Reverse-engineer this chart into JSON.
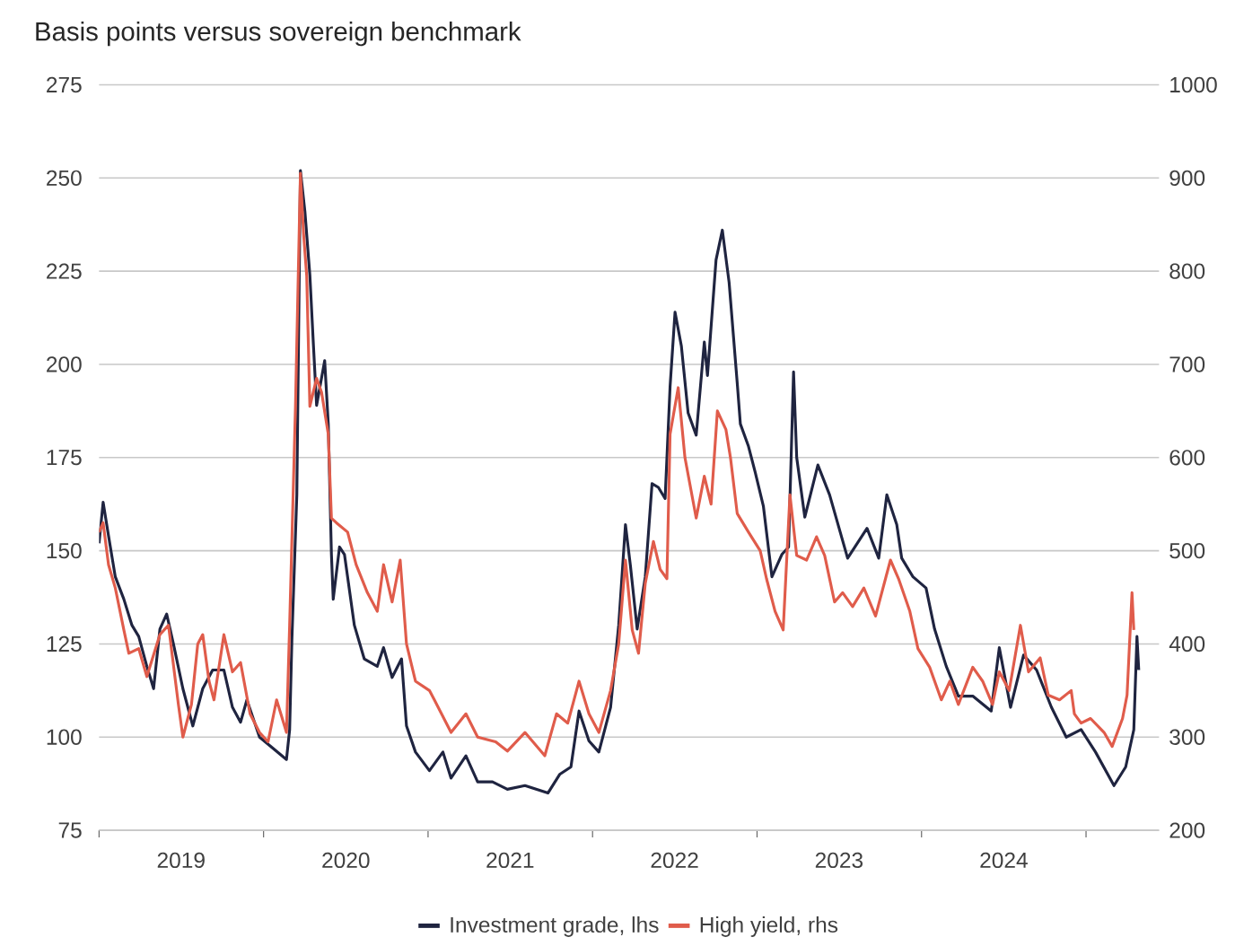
{
  "chart_data": {
    "type": "line",
    "title": "Basis points versus sovereign benchmark",
    "xlim": [
      "2019-01-01",
      "2025-06-12"
    ],
    "xticks": [
      {
        "value": "2019-01-01",
        "label": null
      },
      {
        "value": "2020-01-01",
        "label": null
      },
      {
        "value": "2021-01-01",
        "label": null
      },
      {
        "value": "2022-01-01",
        "label": null
      },
      {
        "value": "2023-01-01",
        "label": null
      },
      {
        "value": "2024-01-01",
        "label": null
      },
      {
        "value": "2025-01-01",
        "label": null
      },
      {
        "value": "2019-07-02",
        "label": "2019"
      },
      {
        "value": "2020-07-02",
        "label": "2020"
      },
      {
        "value": "2021-07-02",
        "label": "2021"
      },
      {
        "value": "2022-07-02",
        "label": "2022"
      },
      {
        "value": "2023-07-02",
        "label": "2023"
      },
      {
        "value": "2024-07-02",
        "label": "2024"
      }
    ],
    "ylim": [
      75,
      275
    ],
    "yticks": [
      75,
      100,
      125,
      150,
      175,
      200,
      225,
      250,
      275
    ],
    "y2lim": [
      200,
      1000
    ],
    "y2ticks": [
      200,
      300,
      400,
      500,
      600,
      700,
      800,
      900,
      1000
    ],
    "grid": "y",
    "legend": "bottom",
    "line_style": "solid",
    "series": [
      {
        "name": "Investment grade, lhs",
        "color": "#1f2440",
        "axis": "y",
        "x": [
          "2019-01-01",
          "2019-01-10",
          "2019-01-22",
          "2019-02-06",
          "2019-02-25",
          "2019-03-15",
          "2019-03-30",
          "2019-04-17",
          "2019-05-02",
          "2019-05-16",
          "2019-05-31",
          "2019-06-15",
          "2019-07-06",
          "2019-07-28",
          "2019-08-19",
          "2019-09-10",
          "2019-10-05",
          "2019-10-24",
          "2019-11-11",
          "2019-11-25",
          "2019-12-23",
          "2020-01-22",
          "2020-02-21",
          "2020-02-28",
          "2020-03-04",
          "2020-03-15",
          "2020-03-23",
          "2020-04-02",
          "2020-04-13",
          "2020-04-21",
          "2020-04-28",
          "2020-05-16",
          "2020-05-24",
          "2020-05-31",
          "2020-06-04",
          "2020-06-18",
          "2020-06-29",
          "2020-07-21",
          "2020-08-12",
          "2020-09-10",
          "2020-09-24",
          "2020-10-13",
          "2020-11-03",
          "2020-11-14",
          "2020-12-04",
          "2021-01-04",
          "2021-02-03",
          "2021-02-21",
          "2021-03-26",
          "2021-04-21",
          "2021-05-24",
          "2021-06-26",
          "2021-08-04",
          "2021-09-24",
          "2021-10-20",
          "2021-11-14",
          "2021-12-02",
          "2021-12-24",
          "2022-01-15",
          "2022-02-10",
          "2022-02-28",
          "2022-03-15",
          "2022-03-26",
          "2022-04-10",
          "2022-04-28",
          "2022-05-13",
          "2022-05-27",
          "2022-06-11",
          "2022-06-22",
          "2022-07-03",
          "2022-07-17",
          "2022-08-01",
          "2022-08-19",
          "2022-09-06",
          "2022-09-13",
          "2022-10-02",
          "2022-10-16",
          "2022-10-31",
          "2022-11-18",
          "2022-11-25",
          "2022-12-13",
          "2022-12-28",
          "2023-01-15",
          "2023-02-03",
          "2023-02-25",
          "2023-03-12",
          "2023-03-23",
          "2023-03-30",
          "2023-04-17",
          "2023-05-16",
          "2023-06-11",
          "2023-07-21",
          "2023-09-02",
          "2023-09-28",
          "2023-10-16",
          "2023-11-07",
          "2023-11-18",
          "2023-12-13",
          "2024-01-11",
          "2024-01-30",
          "2024-02-25",
          "2024-03-23",
          "2024-04-24",
          "2024-06-04",
          "2024-06-22",
          "2024-07-17",
          "2024-08-15",
          "2024-09-13",
          "2024-10-16",
          "2024-11-18",
          "2024-12-21",
          "2025-01-22",
          "2025-03-04",
          "2025-03-30",
          "2025-04-17",
          "2025-04-24",
          "2025-04-28"
        ],
        "values": [
          152,
          163,
          154,
          143,
          137,
          130,
          127,
          119,
          113,
          129,
          133,
          125,
          113,
          103,
          113,
          118,
          118,
          108,
          104,
          110,
          100,
          97,
          94,
          102,
          126,
          165,
          252,
          241,
          224,
          205,
          189,
          201,
          184,
          149,
          137,
          151,
          149,
          130,
          121,
          119,
          124,
          116,
          121,
          103,
          96,
          91,
          96,
          89,
          95,
          88,
          88,
          86,
          87,
          85,
          90,
          92,
          107,
          99,
          96,
          108,
          130,
          157,
          146,
          129,
          143,
          168,
          167,
          164,
          194,
          214,
          205,
          187,
          181,
          206,
          197,
          228,
          236,
          222,
          195,
          184,
          178,
          171,
          162,
          143,
          149,
          151,
          198,
          175,
          159,
          173,
          165,
          148,
          156,
          148,
          165,
          157,
          148,
          143,
          140,
          129,
          119,
          111,
          111,
          107,
          124,
          108,
          122,
          118,
          108,
          100,
          102,
          96,
          87,
          92,
          102,
          127,
          118
        ]
      },
      {
        "name": "High yield, rhs",
        "color": "#e05c4b",
        "axis": "y2",
        "x": [
          "2019-01-01",
          "2019-01-10",
          "2019-01-22",
          "2019-02-06",
          "2019-02-25",
          "2019-03-08",
          "2019-03-30",
          "2019-04-17",
          "2019-05-16",
          "2019-06-04",
          "2019-06-26",
          "2019-07-06",
          "2019-07-25",
          "2019-08-08",
          "2019-08-19",
          "2019-09-02",
          "2019-09-13",
          "2019-10-05",
          "2019-10-24",
          "2019-11-11",
          "2019-12-02",
          "2019-12-23",
          "2020-01-11",
          "2020-01-30",
          "2020-02-21",
          "2020-02-28",
          "2020-03-12",
          "2020-03-23",
          "2020-03-30",
          "2020-04-06",
          "2020-04-13",
          "2020-04-28",
          "2020-05-09",
          "2020-05-24",
          "2020-05-31",
          "2020-06-11",
          "2020-07-06",
          "2020-07-25",
          "2020-08-19",
          "2020-09-10",
          "2020-09-24",
          "2020-10-13",
          "2020-10-31",
          "2020-11-14",
          "2020-12-04",
          "2021-01-04",
          "2021-01-15",
          "2021-02-21",
          "2021-03-26",
          "2021-04-21",
          "2021-05-31",
          "2021-06-26",
          "2021-08-04",
          "2021-09-17",
          "2021-10-13",
          "2021-11-07",
          "2021-12-02",
          "2021-12-24",
          "2022-01-15",
          "2022-02-10",
          "2022-02-28",
          "2022-03-15",
          "2022-03-30",
          "2022-04-13",
          "2022-04-28",
          "2022-05-16",
          "2022-05-31",
          "2022-06-15",
          "2022-06-22",
          "2022-07-10",
          "2022-07-25",
          "2022-08-19",
          "2022-09-06",
          "2022-09-21",
          "2022-10-05",
          "2022-10-24",
          "2022-11-03",
          "2022-11-18",
          "2022-12-13",
          "2023-01-08",
          "2023-01-22",
          "2023-02-10",
          "2023-02-28",
          "2023-03-15",
          "2023-03-30",
          "2023-04-21",
          "2023-05-13",
          "2023-05-31",
          "2023-06-22",
          "2023-07-10",
          "2023-08-01",
          "2023-08-26",
          "2023-09-21",
          "2023-10-24",
          "2023-11-11",
          "2023-12-06",
          "2023-12-24",
          "2024-01-19",
          "2024-02-14",
          "2024-03-04",
          "2024-03-23",
          "2024-04-24",
          "2024-05-16",
          "2024-06-07",
          "2024-06-22",
          "2024-07-14",
          "2024-08-08",
          "2024-08-26",
          "2024-09-21",
          "2024-10-09",
          "2024-11-03",
          "2024-11-29",
          "2024-12-06",
          "2024-12-21",
          "2025-01-11",
          "2025-02-10",
          "2025-02-28",
          "2025-03-23",
          "2025-04-02",
          "2025-04-13",
          "2025-04-17"
        ],
        "values": [
          520,
          530,
          485,
          460,
          415,
          390,
          395,
          365,
          410,
          420,
          335,
          300,
          335,
          400,
          410,
          360,
          340,
          410,
          370,
          380,
          325,
          305,
          295,
          340,
          305,
          420,
          655,
          905,
          840,
          795,
          655,
          685,
          670,
          625,
          535,
          530,
          520,
          485,
          455,
          435,
          485,
          445,
          490,
          400,
          360,
          350,
          340,
          305,
          325,
          300,
          295,
          285,
          305,
          280,
          325,
          315,
          360,
          325,
          305,
          350,
          400,
          490,
          415,
          390,
          465,
          510,
          480,
          470,
          625,
          675,
          600,
          535,
          580,
          550,
          650,
          630,
          600,
          540,
          520,
          500,
          470,
          435,
          415,
          560,
          495,
          490,
          515,
          495,
          445,
          455,
          440,
          460,
          430,
          490,
          470,
          435,
          395,
          375,
          340,
          360,
          335,
          375,
          360,
          335,
          370,
          350,
          420,
          370,
          385,
          345,
          340,
          350,
          325,
          315,
          320,
          305,
          290,
          320,
          345,
          455,
          415
        ]
      }
    ]
  }
}
